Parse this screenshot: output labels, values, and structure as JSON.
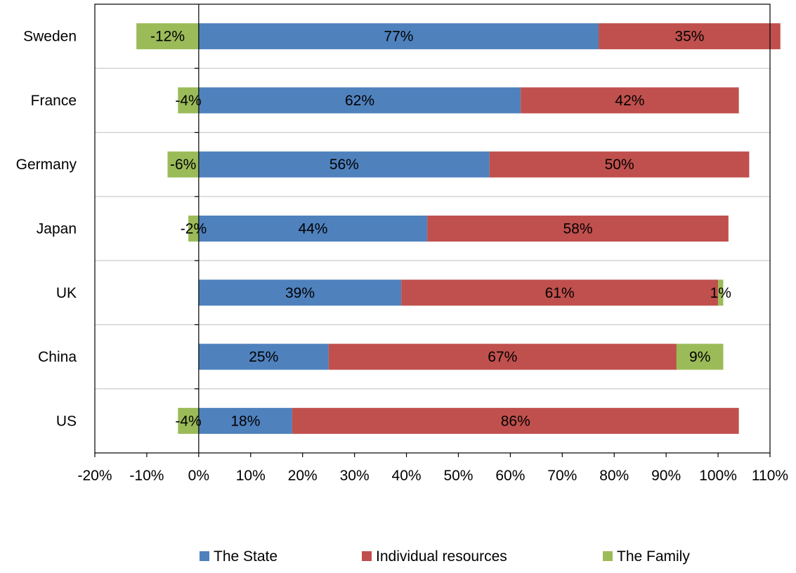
{
  "chart_data": {
    "type": "bar",
    "orientation": "horizontal",
    "stacked": true,
    "categories": [
      "Sweden",
      "France",
      "Germany",
      "Japan",
      "UK",
      "China",
      "US"
    ],
    "series": [
      {
        "name": "The State",
        "color": "#4f81bd",
        "values": [
          77,
          62,
          56,
          44,
          39,
          25,
          18
        ],
        "labels": [
          "77%",
          "62%",
          "56%",
          "44%",
          "39%",
          "25%",
          "18%"
        ]
      },
      {
        "name": "Individual resources",
        "color": "#c0504d",
        "values": [
          35,
          42,
          50,
          58,
          61,
          67,
          86
        ],
        "labels": [
          "35%",
          "42%",
          "50%",
          "58%",
          "61%",
          "67%",
          "86%"
        ]
      },
      {
        "name": "The Family",
        "color": "#9bbb59",
        "values": [
          -12,
          -4,
          -6,
          -2,
          1,
          9,
          -4
        ],
        "labels": [
          "-12%",
          "-4%",
          "-6%",
          "-2%",
          "1%",
          "9%",
          "-4%"
        ]
      }
    ],
    "xlim": [
      -20,
      110
    ],
    "xticks": [
      "-20%",
      "-10%",
      "0%",
      "10%",
      "20%",
      "30%",
      "40%",
      "50%",
      "60%",
      "70%",
      "80%",
      "90%",
      "100%",
      "110%"
    ],
    "xlabel": "",
    "ylabel": "",
    "title": "",
    "gridlines": "horizontal category separators",
    "legend": {
      "position": "bottom",
      "entries": [
        "The State",
        "Individual resources",
        "The Family"
      ]
    }
  }
}
